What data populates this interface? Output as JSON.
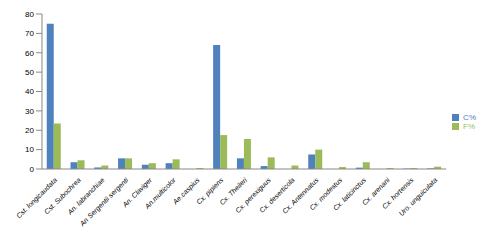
{
  "chart_data": {
    "type": "bar",
    "categories": [
      "Cst. longicaudata",
      "Cst. Subochrea",
      "An. labranchiae",
      "An Sergentii sergenti",
      "An. Claviger",
      "An.multicolor",
      "Ae.caspius",
      "Cx. pipiens",
      "Cx. Theileri",
      "Cx. perexiguus",
      "Cx. deserticola",
      "Cx. Antennatus",
      "Cx. modestus",
      "Cx. laticinctus",
      "Cx. arenani",
      "Cx. hortensis",
      "Uro. unguiculata"
    ],
    "series": [
      {
        "name": "C%",
        "color": "#4f81bd",
        "values": [
          75,
          3.5,
          0.8,
          5.5,
          2.2,
          3,
          0,
          64,
          5.5,
          1.5,
          0,
          7.5,
          0,
          0.7,
          0,
          0.2,
          0.3
        ]
      },
      {
        "name": "F%",
        "color": "#9bbb59",
        "values": [
          23.5,
          4.5,
          1.8,
          5.5,
          3,
          5,
          0.5,
          17.5,
          15.5,
          6,
          1.8,
          10,
          1,
          3.5,
          0.5,
          0.5,
          1.2
        ]
      }
    ],
    "ylim": [
      0,
      80
    ],
    "yticks": [
      0,
      10,
      20,
      30,
      40,
      50,
      60,
      70,
      80
    ],
    "grid": false,
    "legend": "right"
  }
}
